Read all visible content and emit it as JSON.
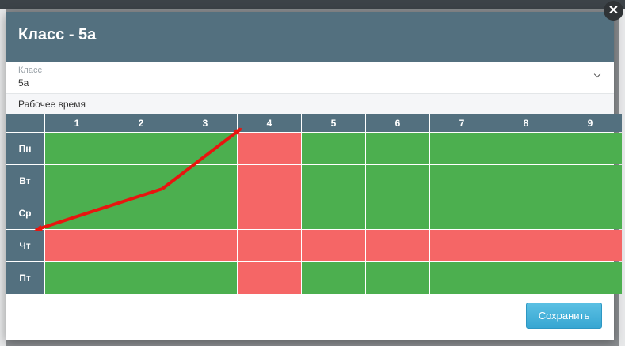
{
  "modal": {
    "title": "Класс - 5а",
    "close_label": "✕",
    "save_label": "Сохранить"
  },
  "class_select": {
    "label": "Класс",
    "value": "5а"
  },
  "section": {
    "title": "Рабочее время"
  },
  "schedule": {
    "periods": [
      "1",
      "2",
      "3",
      "4",
      "5",
      "6",
      "7",
      "8",
      "9"
    ],
    "days": [
      "Пн",
      "Вт",
      "Ср",
      "Чт",
      "Пт"
    ],
    "grid": [
      [
        1,
        1,
        1,
        0,
        1,
        1,
        1,
        1,
        1
      ],
      [
        1,
        1,
        1,
        0,
        1,
        1,
        1,
        1,
        1
      ],
      [
        1,
        1,
        1,
        0,
        1,
        1,
        1,
        1,
        1
      ],
      [
        0,
        0,
        0,
        0,
        0,
        0,
        0,
        0,
        0
      ],
      [
        1,
        1,
        1,
        0,
        1,
        1,
        1,
        1,
        1
      ]
    ],
    "colors": {
      "working": "#4caf4f",
      "off": "#f56666",
      "header": "#53707f"
    }
  },
  "annotation": {
    "color": "#e8150f"
  }
}
